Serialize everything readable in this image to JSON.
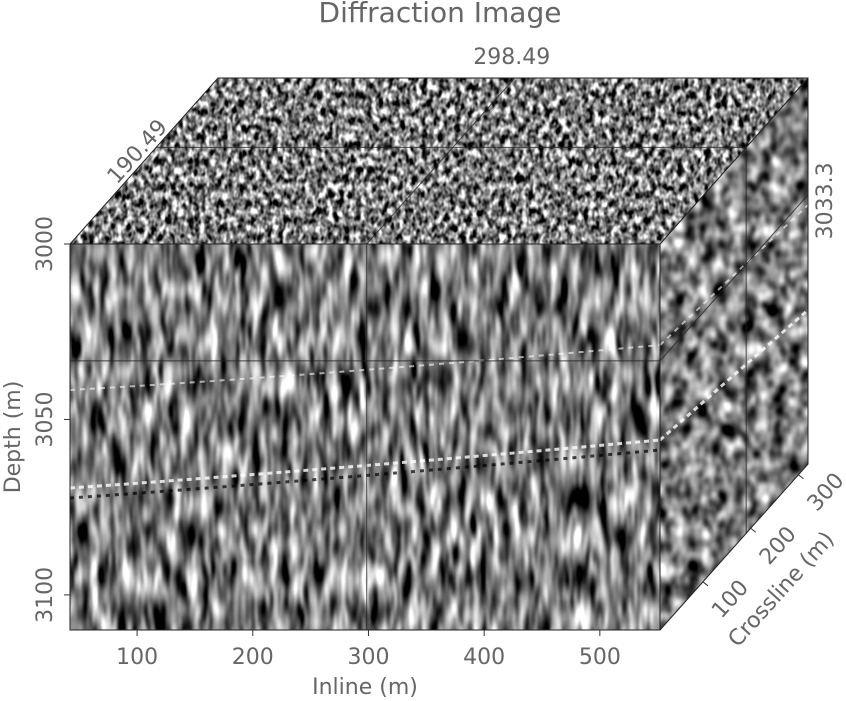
{
  "chart_data": {
    "type": "cube",
    "title": "Diffraction Image",
    "xlabel": "Inline (m)",
    "ylabel": "Depth (m)",
    "zlabel": "Crossline (m)",
    "xlim": [
      42,
      552
    ],
    "xticks": [
      100,
      200,
      300,
      400,
      500
    ],
    "ylim": [
      3000,
      3110
    ],
    "yticks": [
      3000,
      3050,
      3100
    ],
    "zlim": [
      10,
      320
    ],
    "zticks": [
      100,
      200,
      300
    ],
    "slices": {
      "inline": 298.49,
      "crossline": 190.49,
      "depth": 3033.3
    }
  }
}
